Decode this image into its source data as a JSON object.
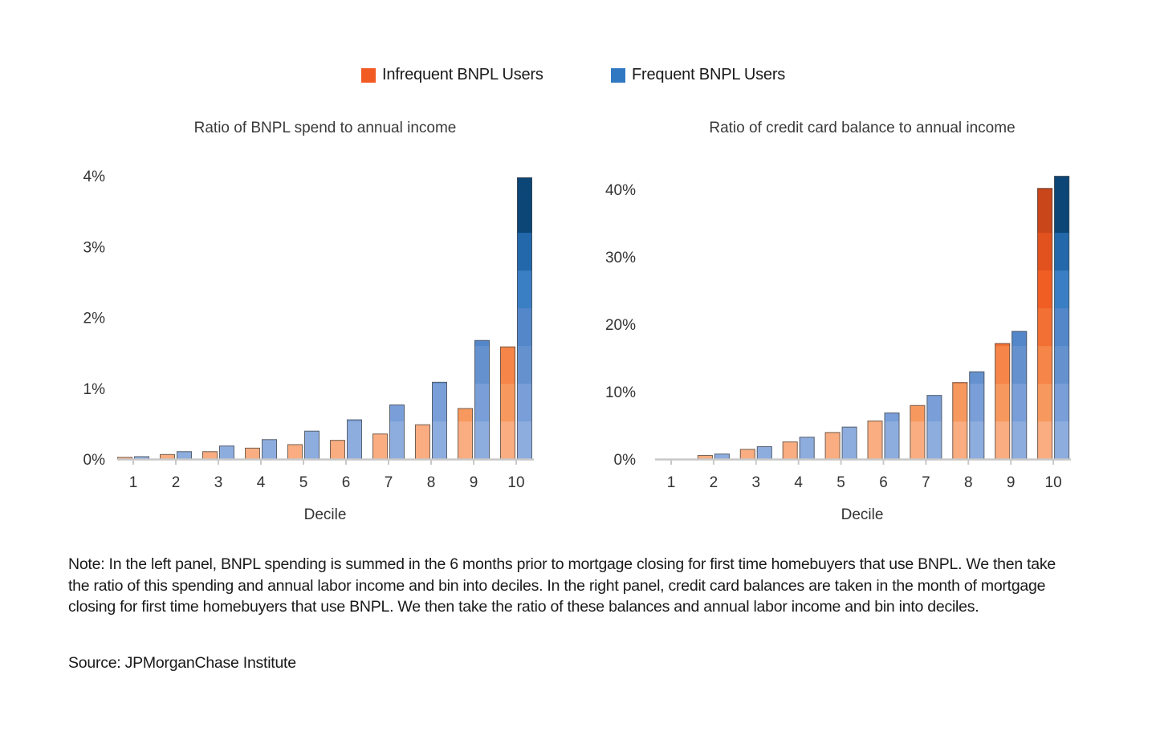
{
  "legend": {
    "items": [
      {
        "label": "Infrequent BNPL Users",
        "color": "#f15a22"
      },
      {
        "label": "Frequent BNPL Users",
        "color": "#3079c2"
      }
    ]
  },
  "chart_data": [
    {
      "type": "bar",
      "title": "Ratio of BNPL spend to annual income",
      "xlabel": "Decile",
      "ylabel": "",
      "categories": [
        "1",
        "2",
        "3",
        "4",
        "5",
        "6",
        "7",
        "8",
        "9",
        "10"
      ],
      "ylim": [
        0,
        4
      ],
      "yticks": [
        0,
        1,
        2,
        3,
        4
      ],
      "ytick_labels": [
        "0%",
        "1%",
        "2%",
        "3%",
        "4%"
      ],
      "unit": "%",
      "grid": false,
      "legend_position": "top-center",
      "series": [
        {
          "name": "Infrequent BNPL Users",
          "values": [
            0.03,
            0.07,
            0.11,
            0.16,
            0.21,
            0.27,
            0.36,
            0.49,
            0.72,
            1.59
          ]
        },
        {
          "name": "Frequent BNPL Users",
          "values": [
            0.04,
            0.11,
            0.19,
            0.28,
            0.4,
            0.56,
            0.77,
            1.09,
            1.68,
            3.98
          ]
        }
      ]
    },
    {
      "type": "bar",
      "title": "Ratio of credit card balance to annual income",
      "xlabel": "Decile",
      "ylabel": "",
      "categories": [
        "1",
        "2",
        "3",
        "4",
        "5",
        "6",
        "7",
        "8",
        "9",
        "10"
      ],
      "ylim": [
        0,
        42
      ],
      "yticks": [
        0,
        10,
        20,
        30,
        40
      ],
      "ytick_labels": [
        "0%",
        "10%",
        "20%",
        "30%",
        "40%"
      ],
      "unit": "%",
      "grid": false,
      "legend_position": "top-center",
      "series": [
        {
          "name": "Infrequent BNPL Users",
          "values": [
            0.0,
            0.6,
            1.5,
            2.6,
            4.0,
            5.7,
            8.0,
            11.4,
            17.2,
            40.2
          ]
        },
        {
          "name": "Frequent BNPL Users",
          "values": [
            0.0,
            0.8,
            1.9,
            3.3,
            4.8,
            6.9,
            9.5,
            13.0,
            19.0,
            42.0
          ]
        }
      ]
    }
  ],
  "palette": {
    "orange_bands": [
      "#f9ad80",
      "#f7995f",
      "#f58548",
      "#f37034",
      "#f15e24",
      "#e2521e",
      "#c9461a"
    ],
    "blue_bands": [
      "#8eaddf",
      "#7a9fd8",
      "#6592cf",
      "#5487c9",
      "#3a7fc4",
      "#2268aa",
      "#0b4677"
    ],
    "axis": "#c8c8c8",
    "bar_outline": "#4a4a4a"
  },
  "note": "Note: In the left panel, BNPL spending is summed in the 6 months prior to mortgage closing for first time homebuyers that use BNPL. We then take the ratio of this spending and annual labor income and bin into deciles. In the right panel, credit card balances are taken in the month of mortgage closing for first time homebuyers that use BNPL. We then take the ratio of these balances and annual labor income and bin into deciles.",
  "source": "Source: JPMorganChase Institute"
}
